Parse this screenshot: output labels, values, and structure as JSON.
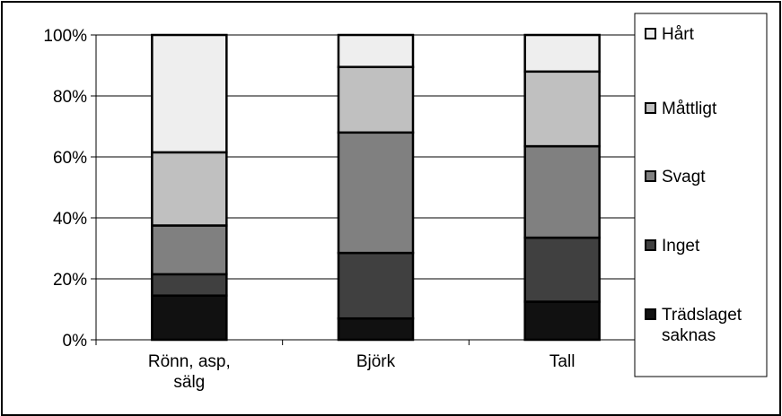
{
  "chart_data": {
    "type": "bar",
    "stacked": "percent",
    "categories": [
      [
        "Rönn, asp,",
        "sälg"
      ],
      [
        "Björk"
      ],
      [
        "Tall"
      ]
    ],
    "series": [
      {
        "name": [
          "Trädslaget",
          "saknas"
        ],
        "color": "#111111",
        "values": [
          14.5,
          7,
          12.5
        ]
      },
      {
        "name": [
          "Inget"
        ],
        "color": "#404040",
        "values": [
          7,
          21.5,
          21
        ]
      },
      {
        "name": [
          "Svagt"
        ],
        "color": "#808080",
        "values": [
          16,
          39.5,
          30
        ]
      },
      {
        "name": [
          "Måttligt"
        ],
        "color": "#c0c0c0",
        "values": [
          24,
          21.5,
          24.5
        ]
      },
      {
        "name": [
          "Hårt"
        ],
        "color": "#eeeeee",
        "values": [
          38.5,
          10.5,
          12
        ]
      }
    ],
    "ylim": [
      0,
      100
    ],
    "yticks": [
      "0%",
      "20%",
      "40%",
      "60%",
      "80%",
      "100%"
    ],
    "grid": true,
    "legend": "right"
  }
}
